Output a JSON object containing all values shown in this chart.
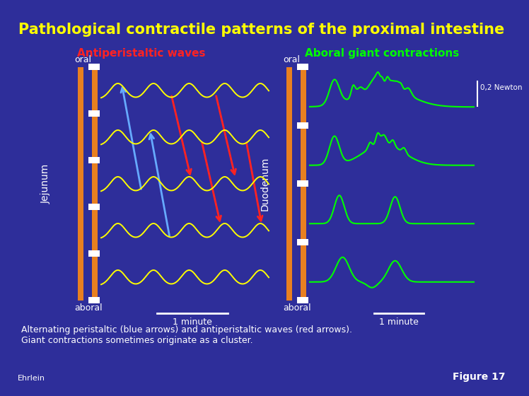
{
  "title": "Pathological contractile patterns of the proximal intestine",
  "title_color": "#FFFF00",
  "title_fontsize": 15,
  "bg_color": "#2E2E9A",
  "left_panel_title": "Antiperistaltic waves",
  "left_panel_title_color": "#FF2222",
  "right_panel_title": "Aboral giant contractions",
  "right_panel_title_color": "#00FF00",
  "left_ylabel": "Jejunum",
  "right_ylabel": "Duodenum",
  "ylabel_color": "#FFFFFF",
  "oral_label": "oral",
  "aboral_label": "aboral",
  "one_minute_label": "1 minute",
  "label_color": "#FFFFFF",
  "newton_label": "0,2 Newton",
  "footer_text": "Alternating peristaltic (blue arrows) and antiperistaltic waves (red arrows).\nGiant contractions sometimes originate as a cluster.",
  "footer_color": "#FFFFFF",
  "ehrlein_text": "Ehrlein",
  "figure17_text": "Figure 17",
  "figure_text_color": "#FFFFFF",
  "yellow_wave_color": "#FFFF00",
  "green_wave_color": "#00FF00",
  "orange_bar_color": "#E88020",
  "blue_arrow_color": "#66AAFF",
  "red_arrow_color": "#FF2222"
}
